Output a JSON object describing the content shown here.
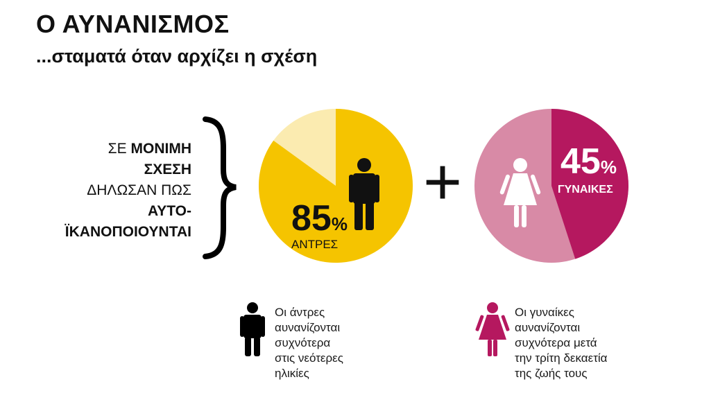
{
  "header": {
    "title": "Ο ΑΥΝΑΝΙΣΜΟΣ",
    "subtitle": "...σταματά όταν αρχίζει η σχέση"
  },
  "intro": {
    "line1_regular": "ΣΕ ",
    "line1_bold": "ΜΟΝΙΜΗ",
    "line2": "ΣΧΕΣΗ",
    "line3": "ΔΗΛΩΣΑΝ ΠΩΣ",
    "line4": "ΑΥΤΟ-",
    "line5": "ΪΚΑΝΟΠΟΙΟΥΝΤΑΙ"
  },
  "plus_sign": "+",
  "chart_data": [
    {
      "type": "pie",
      "categories": [
        "ΑΝΤΡΕΣ"
      ],
      "values": [
        85
      ],
      "value_label": "85",
      "unit": "%",
      "category_label": "ΑΝΤΡΕΣ",
      "colors": {
        "highlight": "#F5C400",
        "rest": "#FBEBB0"
      },
      "icon": "man-icon"
    },
    {
      "type": "pie",
      "categories": [
        "ΓΥΝΑΙΚΕΣ"
      ],
      "values": [
        45
      ],
      "value_label": "45",
      "unit": "%",
      "category_label": "ΓΥΝΑΙΚΕΣ",
      "colors": {
        "highlight": "#B5185F",
        "rest": "#D88AA6"
      },
      "icon": "woman-icon"
    }
  ],
  "legend": {
    "men": {
      "text": "Οι άντρες\nαυνανίζονται\nσυχνότερα\nστις νεότερες\nηλικίες",
      "icon": "man-icon",
      "color": "#000000"
    },
    "women": {
      "text": "Οι γυναίκες\nαυνανίζονται\nσυχνότερα μετά\nτην τρίτη δεκαετία\nτης ζωής τους",
      "icon": "woman-icon",
      "color": "#B5185F"
    }
  }
}
